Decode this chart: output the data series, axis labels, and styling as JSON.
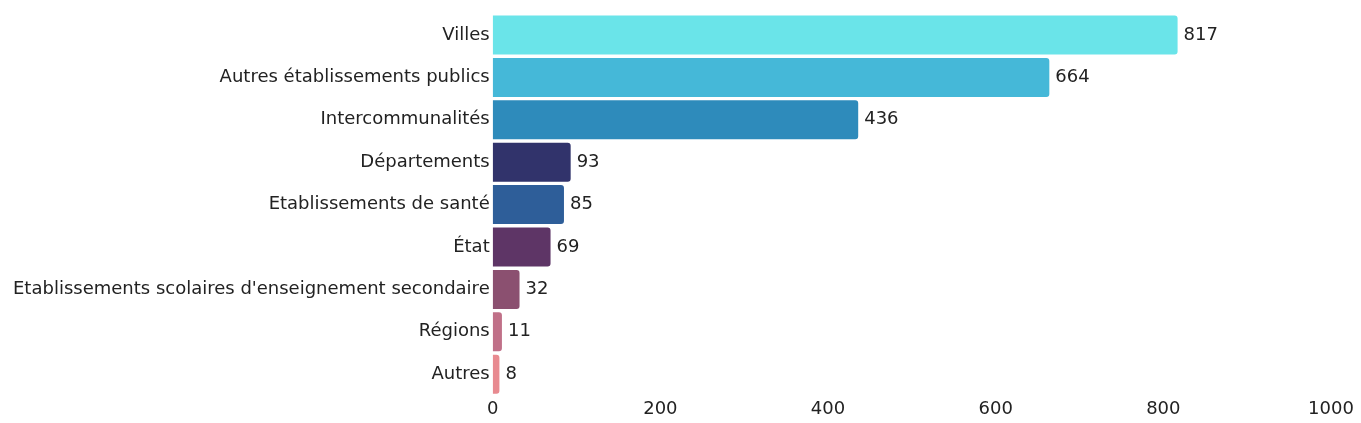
{
  "chart_data": {
    "type": "bar",
    "orientation": "horizontal",
    "categories": [
      "Villes",
      "Autres établissements publics",
      "Intercommunalités",
      "Départements",
      "Etablissements de santé",
      "État",
      "Etablissements scolaires d'enseignement secondaire",
      "Régions",
      "Autres"
    ],
    "values": [
      817,
      664,
      436,
      93,
      85,
      69,
      32,
      11,
      8
    ],
    "colors": [
      "#6ae4e9",
      "#45b8d8",
      "#2e8bbb",
      "#31336b",
      "#2e5e99",
      "#5e3566",
      "#8b5070",
      "#c07088",
      "#e88a90"
    ],
    "xlim": [
      0,
      1000
    ],
    "xticks": [
      0,
      200,
      400,
      600,
      800,
      1000
    ],
    "grid": false,
    "legend": false,
    "data_labels": true
  }
}
